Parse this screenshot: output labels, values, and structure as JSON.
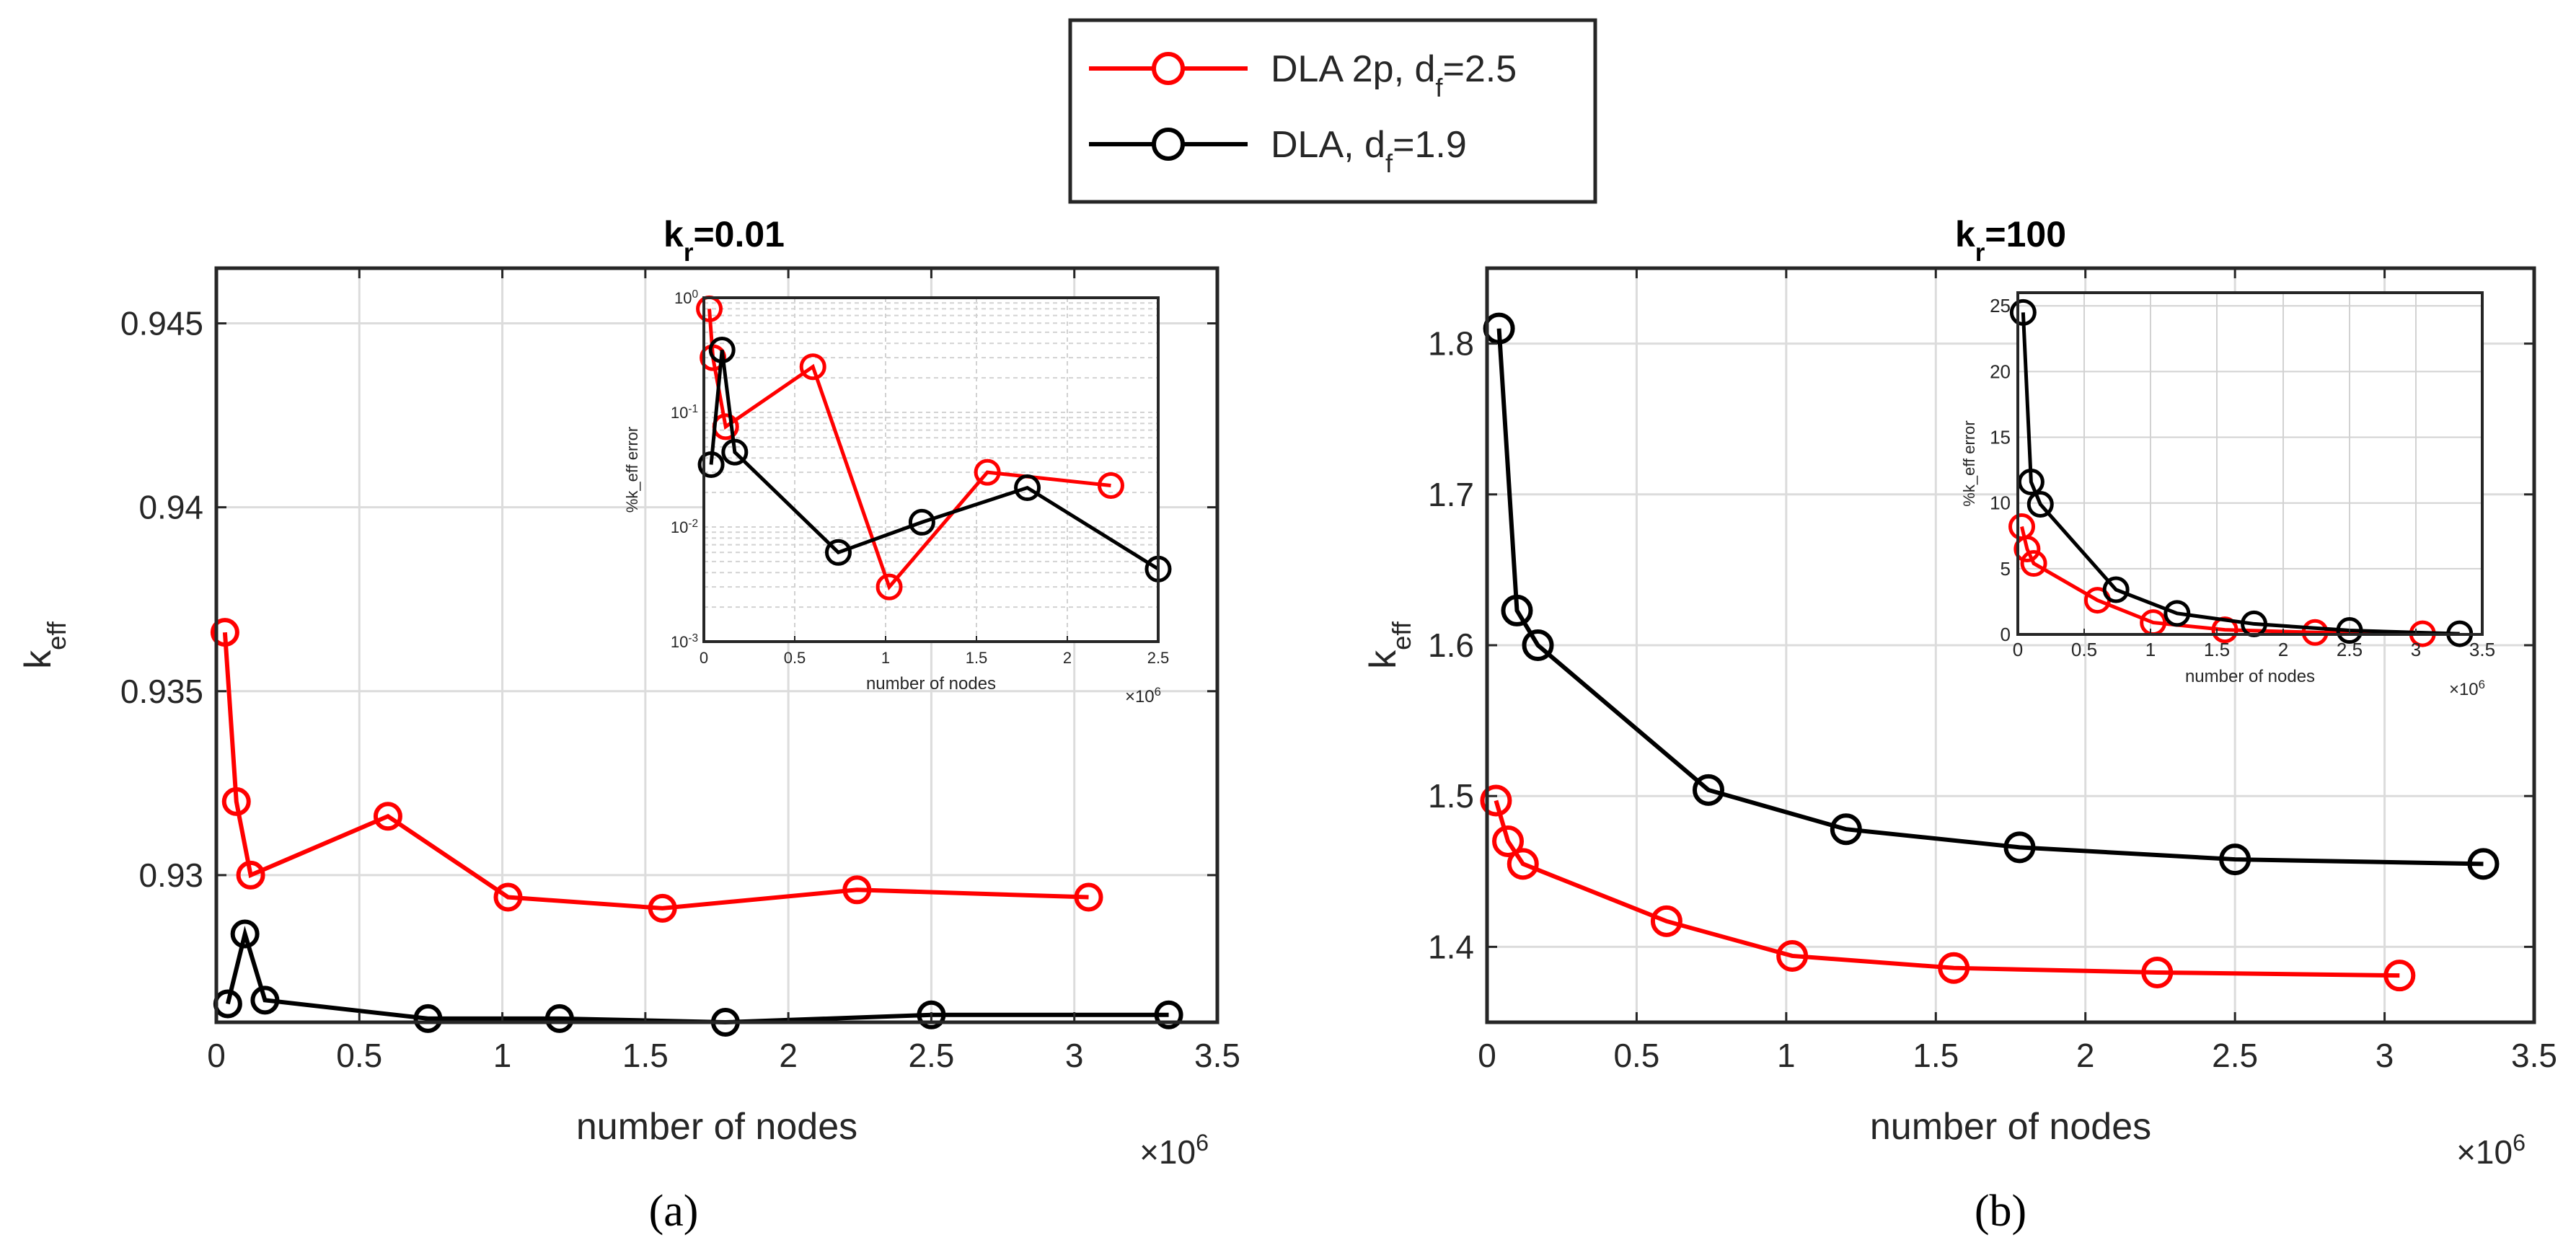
{
  "legend": {
    "entries": [
      {
        "name": "DLA 2p",
        "sub": "f",
        "value": "=2.5",
        "color": "#ff0000"
      },
      {
        "name": "DLA",
        "sub": "f",
        "value": "=1.9",
        "color": "#000000"
      }
    ]
  },
  "captions": {
    "a": "(a)",
    "b": "(b)"
  },
  "chart_data": [
    {
      "type": "line",
      "panel": "a",
      "title": {
        "main": "k",
        "sub": "r",
        "rest": "=0.01"
      },
      "xlabel": "number of nodes",
      "xexp": "×10",
      "xexp_power": "6",
      "ylabel": {
        "main": "k",
        "sub": "eff"
      },
      "xlim": [
        0,
        3.5
      ],
      "ylim": [
        0.926,
        0.9465
      ],
      "xticks": [
        0,
        0.5,
        1,
        1.5,
        2,
        2.5,
        3,
        3.5
      ],
      "xtick_labels": [
        "0",
        "0.5",
        "1",
        "1.5",
        "2",
        "2.5",
        "3",
        "3.5"
      ],
      "yticks": [
        0.93,
        0.935,
        0.94,
        0.945
      ],
      "ytick_labels": [
        "0.93",
        "0.935",
        "0.94",
        "0.945"
      ],
      "grid": true,
      "series": [
        {
          "name": "DLA 2p, df=2.5",
          "color": "#ff0000",
          "x": [
            0.03,
            0.07,
            0.12,
            0.6,
            1.02,
            1.56,
            2.24,
            3.05
          ],
          "y": [
            0.9366,
            0.932,
            0.93,
            0.9316,
            0.9294,
            0.9291,
            0.9296,
            0.9294
          ]
        },
        {
          "name": "DLA, df=1.9",
          "color": "#000000",
          "x": [
            0.04,
            0.1,
            0.17,
            0.74,
            1.2,
            1.78,
            2.5,
            3.33
          ],
          "y": [
            0.9265,
            0.9284,
            0.9266,
            0.9261,
            0.9261,
            0.926,
            0.9262,
            0.9262
          ]
        }
      ],
      "inset": {
        "ylabel": "%k_eff error",
        "xlabel": "number of nodes",
        "xexp": "×10",
        "xexp_power": "6",
        "yscale": "log",
        "xlim": [
          0,
          2.5
        ],
        "ylim": [
          0.001,
          1
        ],
        "xticks": [
          0,
          0.5,
          1,
          1.5,
          2,
          2.5
        ],
        "xtick_labels": [
          "0",
          "0.5",
          "1",
          "1.5",
          "2",
          "2.5"
        ],
        "ytick_labels": [
          {
            "base": "10",
            "exp": "-3",
            "value": 0.001
          },
          {
            "base": "10",
            "exp": "-2",
            "value": 0.01
          },
          {
            "base": "10",
            "exp": "-1",
            "value": 0.1
          },
          {
            "base": "10",
            "exp": "0",
            "value": 1
          }
        ],
        "series": [
          {
            "name": "DLA 2p",
            "color": "#ff0000",
            "x": [
              0.03,
              0.05,
              0.12,
              0.6,
              1.02,
              1.56,
              2.24
            ],
            "y": [
              0.8,
              0.3,
              0.075,
              0.25,
              0.003,
              0.03,
              0.023
            ]
          },
          {
            "name": "DLA",
            "color": "#000000",
            "x": [
              0.04,
              0.1,
              0.17,
              0.74,
              1.2,
              1.78,
              2.5
            ],
            "y": [
              0.035,
              0.35,
              0.045,
              0.006,
              0.011,
              0.022,
              0.0043
            ]
          }
        ]
      }
    },
    {
      "type": "line",
      "panel": "b",
      "title": {
        "main": "k",
        "sub": "r",
        "rest": "=100"
      },
      "xlabel": "number of nodes",
      "xexp": "×10",
      "xexp_power": "6",
      "ylabel": {
        "main": "k",
        "sub": "eff"
      },
      "xlim": [
        0,
        3.5
      ],
      "ylim": [
        1.35,
        1.85
      ],
      "xticks": [
        0,
        0.5,
        1,
        1.5,
        2,
        2.5,
        3,
        3.5
      ],
      "xtick_labels": [
        "0",
        "0.5",
        "1",
        "1.5",
        "2",
        "2.5",
        "3",
        "3.5"
      ],
      "yticks": [
        1.4,
        1.5,
        1.6,
        1.7,
        1.8
      ],
      "ytick_labels": [
        "1.4",
        "1.5",
        "1.6",
        "1.7",
        "1.8"
      ],
      "grid": true,
      "series": [
        {
          "name": "DLA 2p, df=2.5",
          "color": "#ff0000",
          "x": [
            0.03,
            0.07,
            0.12,
            0.6,
            1.02,
            1.56,
            2.24,
            3.05
          ],
          "y": [
            1.497,
            1.47,
            1.455,
            1.417,
            1.394,
            1.386,
            1.383,
            1.381
          ]
        },
        {
          "name": "DLA, df=1.9",
          "color": "#000000",
          "x": [
            0.04,
            0.1,
            0.17,
            0.74,
            1.2,
            1.78,
            2.5,
            3.33
          ],
          "y": [
            1.81,
            1.623,
            1.6,
            1.504,
            1.478,
            1.466,
            1.458,
            1.455
          ]
        }
      ],
      "inset": {
        "ylabel": "%k_eff error",
        "xlabel": "number of nodes",
        "xexp": "×10",
        "xexp_power": "6",
        "yscale": "linear",
        "xlim": [
          0,
          3.5
        ],
        "ylim": [
          0,
          26
        ],
        "xticks": [
          0,
          0.5,
          1,
          1.5,
          2,
          2.5,
          3,
          3.5
        ],
        "xtick_labels": [
          "0",
          "0.5",
          "1",
          "1.5",
          "2",
          "2.5",
          "3",
          "3.5"
        ],
        "yticks": [
          0,
          5,
          10,
          15,
          20,
          25
        ],
        "ytick_labels": [
          "0",
          "5",
          "10",
          "15",
          "20",
          "25"
        ],
        "series": [
          {
            "name": "DLA 2p",
            "color": "#ff0000",
            "x": [
              0.03,
              0.07,
              0.12,
              0.6,
              1.02,
              1.56,
              2.24,
              3.05
            ],
            "y": [
              8.2,
              6.5,
              5.4,
              2.6,
              0.9,
              0.35,
              0.15,
              0.05
            ]
          },
          {
            "name": "DLA",
            "color": "#000000",
            "x": [
              0.04,
              0.1,
              0.17,
              0.74,
              1.2,
              1.78,
              2.5,
              3.33
            ],
            "y": [
              24.5,
              11.6,
              9.9,
              3.4,
              1.6,
              0.8,
              0.3,
              0.05
            ]
          }
        ]
      }
    }
  ]
}
